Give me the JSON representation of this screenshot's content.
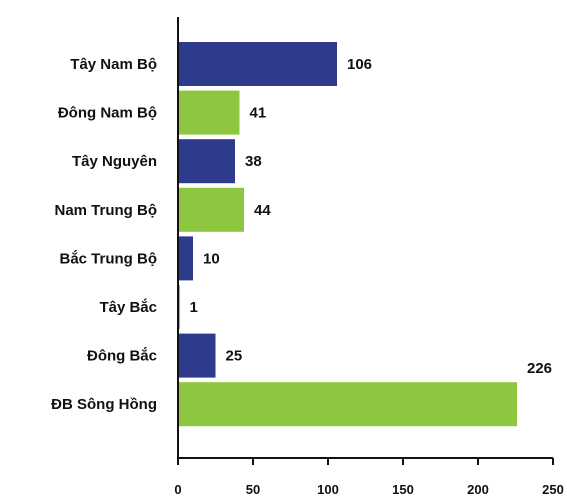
{
  "chart_data": {
    "type": "bar",
    "orientation": "horizontal",
    "categories": [
      "Tây Nam Bộ",
      "Đông Nam Bộ",
      "Tây Nguyên",
      "Nam Trung Bộ",
      "Bắc Trung Bộ",
      "Tây Bắc",
      "Đông Bắc",
      "ĐB Sông Hồng"
    ],
    "values": [
      106,
      41,
      38,
      44,
      10,
      1,
      25,
      226
    ],
    "bar_colors": [
      "#2e3a8c",
      "#8dc63f",
      "#2e3a8c",
      "#8dc63f",
      "#2e3a8c",
      "#8dc63f",
      "#2e3a8c",
      "#8dc63f"
    ],
    "xlim": [
      0,
      250
    ],
    "x_ticks": [
      "0",
      "50",
      "100",
      "150",
      "200",
      "250"
    ],
    "title": "",
    "xlabel": "",
    "ylabel": "",
    "grid": false,
    "legend": false
  }
}
